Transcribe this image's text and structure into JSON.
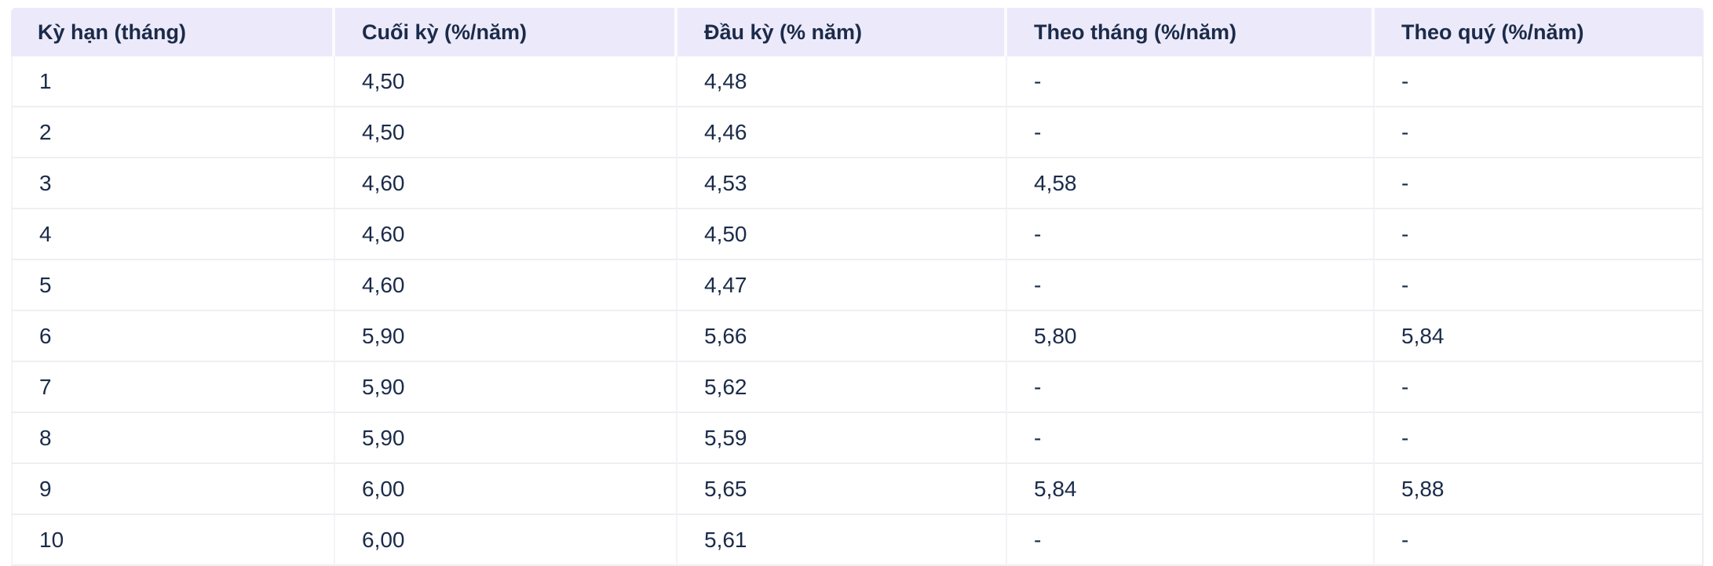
{
  "colors": {
    "page_bg": "#ffffff",
    "header_bg": "#eceafa",
    "text": "#1b2b4a",
    "row_separator": "#efeff3",
    "column_separator": "#f3f3f8"
  },
  "chart_data": {
    "type": "table",
    "title": "",
    "columns": [
      "Kỳ hạn (tháng)",
      "Cuối kỳ (%/năm)",
      "Đầu kỳ (% năm)",
      "Theo tháng (%/năm)",
      "Theo quý (%/năm)"
    ],
    "rows": [
      [
        "1",
        "4,50",
        "4,48",
        "-",
        "-"
      ],
      [
        "2",
        "4,50",
        "4,46",
        "-",
        "-"
      ],
      [
        "3",
        "4,60",
        "4,53",
        "4,58",
        "-"
      ],
      [
        "4",
        "4,60",
        "4,50",
        "-",
        "-"
      ],
      [
        "5",
        "4,60",
        "4,47",
        "-",
        "-"
      ],
      [
        "6",
        "5,90",
        "5,66",
        "5,80",
        "5,84"
      ],
      [
        "7",
        "5,90",
        "5,62",
        "-",
        "-"
      ],
      [
        "8",
        "5,90",
        "5,59",
        "-",
        "-"
      ],
      [
        "9",
        "6,00",
        "5,65",
        "5,84",
        "5,88"
      ],
      [
        "10",
        "6,00",
        "5,61",
        "-",
        "-"
      ]
    ]
  }
}
